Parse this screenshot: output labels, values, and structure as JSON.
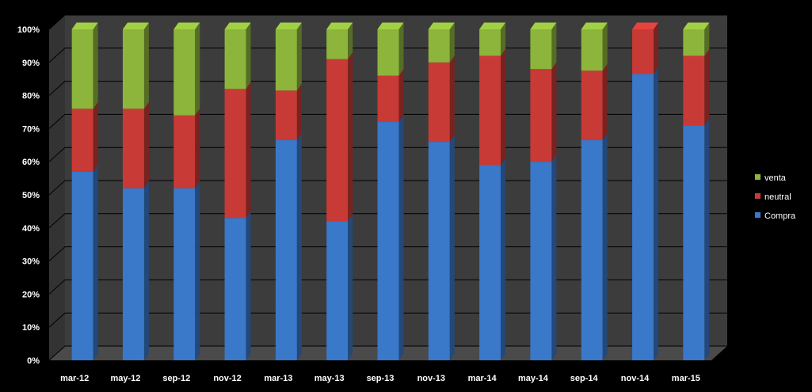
{
  "chart_data": {
    "type": "bar",
    "stacked": "percent",
    "style": "3d",
    "categories": [
      "mar-12",
      "may-12",
      "sep-12",
      "nov-12",
      "mar-13",
      "may-13",
      "sep-13",
      "nov-13",
      "mar-14",
      "may-14",
      "sep-14",
      "nov-14",
      "mar-15"
    ],
    "series": [
      {
        "name": "Compra",
        "color": "#3a78c9",
        "values": [
          57,
          52,
          52,
          43,
          66.5,
          42,
          72,
          66,
          59,
          60,
          66.5,
          86.5,
          71
        ]
      },
      {
        "name": "neutral",
        "color": "#c83a36",
        "values": [
          19,
          24,
          22,
          39,
          15,
          49,
          14,
          24,
          33,
          28,
          21,
          13.5,
          21
        ]
      },
      {
        "name": "venta",
        "color": "#8db53c",
        "values": [
          24,
          24,
          26,
          18,
          18.5,
          9,
          14,
          10,
          8,
          12,
          12.5,
          0,
          8
        ]
      }
    ],
    "ylim": [
      0,
      100
    ],
    "yticks": [
      "0%",
      "10%",
      "20%",
      "30%",
      "40%",
      "50%",
      "60%",
      "70%",
      "80%",
      "90%",
      "100%"
    ],
    "grid": true,
    "legend_position": "right",
    "legend_order": [
      "venta",
      "neutral",
      "Compra"
    ],
    "title": "",
    "xlabel": "",
    "ylabel": ""
  }
}
